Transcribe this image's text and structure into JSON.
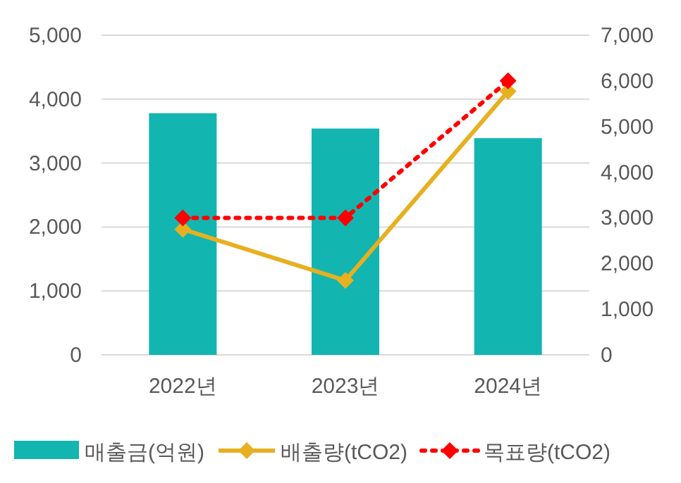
{
  "chart_data": {
    "type": "bar",
    "categories": [
      "2022년",
      "2023년",
      "2024년"
    ],
    "series": [
      {
        "name": "매출금(억원)",
        "color": "#13b5b1",
        "values": [
          3780,
          3540,
          3390
        ]
      },
      {
        "name": "배출량(tCO2)",
        "type": "line",
        "axis": "y2",
        "color": "#e6b020",
        "marker": "diamond",
        "line_style": "solid",
        "values": [
          2750,
          1630,
          5770
        ]
      },
      {
        "name": "목표량(tCO2)",
        "type": "line",
        "axis": "y2",
        "color": "#ff0000",
        "marker": "diamond",
        "line_style": "dotted",
        "values": [
          3000,
          3000,
          6000
        ]
      }
    ],
    "ylim": [
      0,
      5000
    ],
    "yticks": [
      {
        "value": 0,
        "label": "0"
      },
      {
        "value": 1000,
        "label": "1,000"
      },
      {
        "value": 2000,
        "label": "2,000"
      },
      {
        "value": 3000,
        "label": "3,000"
      },
      {
        "value": 4000,
        "label": "4,000"
      },
      {
        "value": 5000,
        "label": "5,000"
      }
    ],
    "y2lim": [
      0,
      7000
    ],
    "y2ticks": [
      {
        "value": 0,
        "label": "0"
      },
      {
        "value": 1000,
        "label": "1,000"
      },
      {
        "value": 2000,
        "label": "2,000"
      },
      {
        "value": 3000,
        "label": "3,000"
      },
      {
        "value": 4000,
        "label": "4,000"
      },
      {
        "value": 5000,
        "label": "5,000"
      },
      {
        "value": 6000,
        "label": "6,000"
      },
      {
        "value": 7000,
        "label": "7,000"
      }
    ],
    "grid": "y",
    "legend": "bottom"
  }
}
